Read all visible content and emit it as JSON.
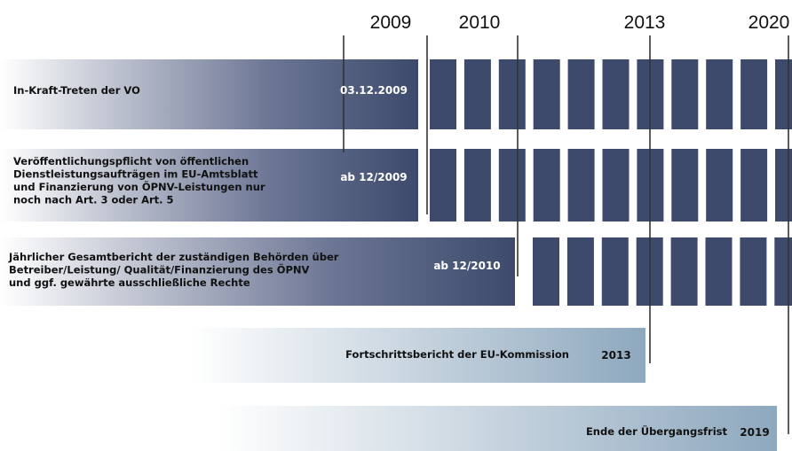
{
  "years": [
    "2009",
    "2010",
    "2013",
    "2020"
  ],
  "rows": [
    {
      "label": [
        "In-Kraft-Treten der VO"
      ],
      "date": "03.12.2009"
    },
    {
      "label": [
        "Veröffentlichungspflicht von öffentlichen",
        "Dienstleistungsaufträgen im EU-Amtsblatt",
        "und Finanzierung von ÖPNV-Leistungen nur",
        "noch nach Art. 3 oder Art. 5"
      ],
      "date": "ab 12/2009"
    },
    {
      "label": [
        "Jährlicher Gesamtbericht der zuständigen Behörden über",
        "Betreiber/Leistung/ Qualität/Finanzierung des ÖPNV",
        "und ggf. gewährte ausschließliche Rechte"
      ],
      "date": "ab 12/2010"
    },
    {
      "label": [
        "Fortschrittsbericht der EU-Kommission"
      ],
      "date": "2013"
    },
    {
      "label": [
        "Ende der Übergangsfrist"
      ],
      "date": "2019"
    }
  ]
}
